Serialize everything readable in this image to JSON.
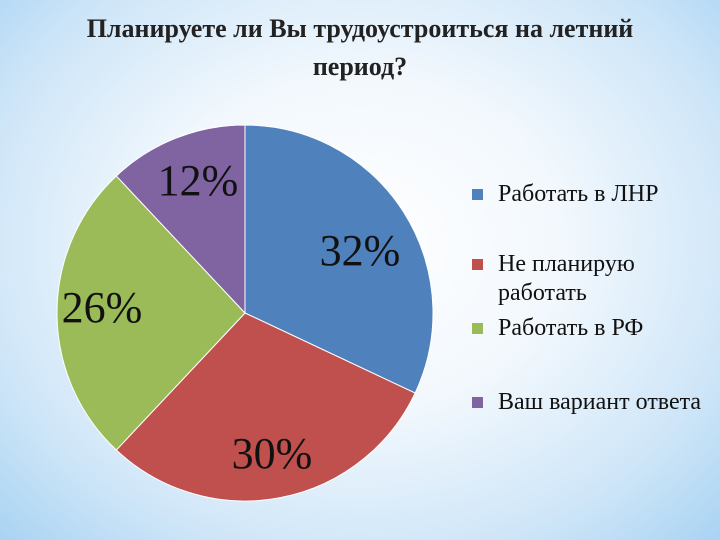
{
  "chart_data": {
    "type": "pie",
    "title": "Планируете ли Вы трудоустроиться на летний период?",
    "categories": [
      "Работать в ЛНР",
      "Не планирую работать",
      "Работать в РФ",
      "Ваш вариант ответа"
    ],
    "values": [
      32,
      30,
      26,
      12
    ],
    "labels": [
      "32%",
      "30%",
      "26%",
      "12%"
    ],
    "colors": [
      "#4f81bd",
      "#c0504d",
      "#9bbb59",
      "#8064a2"
    ],
    "legend": "right"
  }
}
